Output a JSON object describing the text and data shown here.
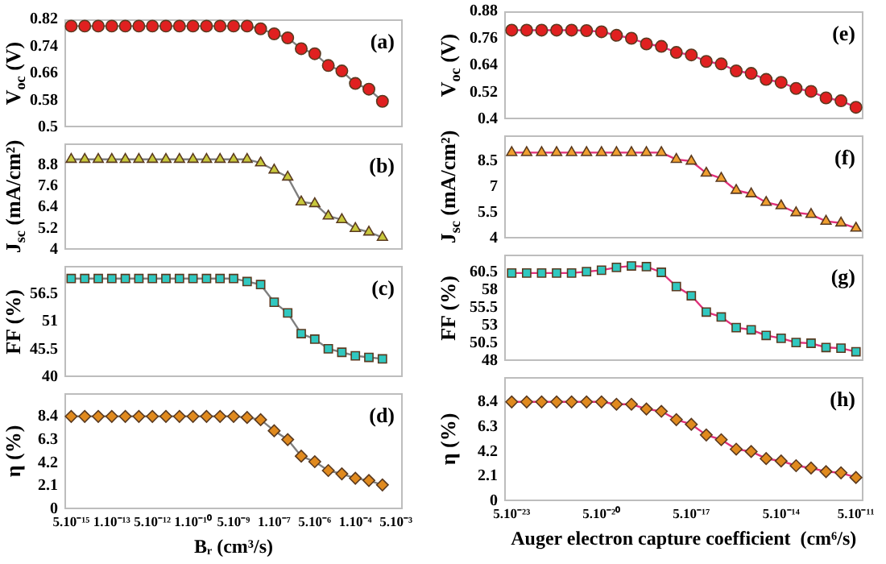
{
  "chart_data": [
    {
      "type": "line",
      "ylabel": "V$_{oc}$ (V)",
      "annotations": [
        "(a)"
      ],
      "marker": "circle",
      "tick_labels": "y",
      "categories": [
        null,
        null,
        null,
        null,
        null,
        null,
        null,
        null,
        null,
        null,
        null,
        null,
        null,
        null,
        null,
        null,
        null,
        null,
        null,
        null,
        null,
        null,
        null,
        null,
        null
      ],
      "ylim": [
        0.5,
        0.82
      ],
      "yticks": [
        0.5,
        0.58,
        0.66,
        0.74,
        0.82
      ],
      "series": [
        {
          "color": "#7f7f7f",
          "colors": [
            "#e02020",
            "#e02020",
            "#e02020",
            "#e02020",
            "#e02020",
            "#e02020",
            "#e02020",
            "#e02020",
            "#e02020",
            "#e02020",
            "#e02020",
            "#e02020",
            "#e02020",
            "#e02020",
            "#e02020",
            "#e02020",
            "#e02020",
            "#e02020",
            "#e02020",
            "#e02020",
            "#e02020",
            "#e02020",
            "#e02020",
            "#e02020",
            "#e02020"
          ],
          "values": [
            0.8,
            0.8,
            0.8,
            0.8,
            0.8,
            0.8,
            0.8,
            0.8,
            0.8,
            0.8,
            0.8,
            0.8,
            0.8,
            0.8,
            0.792,
            0.777,
            0.765,
            0.733,
            0.718,
            0.683,
            0.667,
            0.63,
            0.613,
            0.577,
            null
          ]
        }
      ]
    },
    {
      "type": "line",
      "ylabel": "J$_{sc}$ (mA/cm²)",
      "annotations": [
        "(b)"
      ],
      "marker": "triangle",
      "tick_labels": "y",
      "categories": [
        null,
        null,
        null,
        null,
        null,
        null,
        null,
        null,
        null,
        null,
        null,
        null,
        null,
        null,
        null,
        null,
        null,
        null,
        null,
        null,
        null,
        null,
        null,
        null,
        null
      ],
      "ylim": [
        4,
        10
      ],
      "yticks": [
        4,
        5.2,
        6.4,
        7.6,
        8.8
      ],
      "series": [
        {
          "color": "#7f7f7f",
          "colors": [
            "#c8c83c",
            "#c8c83c",
            "#c8c83c",
            "#c8c83c",
            "#c8c83c",
            "#c8c83c",
            "#c8c83c",
            "#c8c83c",
            "#c8c83c",
            "#c8c83c",
            "#c8c83c",
            "#c8c83c",
            "#c8c83c",
            "#c8c83c",
            "#c8c83c",
            "#c8c83c",
            "#c8c83c",
            "#c8c83c",
            "#c8c83c",
            "#c8c83c",
            "#c8c83c",
            "#c8c83c",
            "#c8c83c",
            "#c8c83c",
            "#c8c83c"
          ],
          "values": [
            9.1,
            9.1,
            9.1,
            9.1,
            9.1,
            9.1,
            9.1,
            9.1,
            9.1,
            9.1,
            9.1,
            9.1,
            9.1,
            9.1,
            8.9,
            8.5,
            8.1,
            6.7,
            6.6,
            5.9,
            5.7,
            5.2,
            5.0,
            4.7,
            null
          ]
        }
      ]
    },
    {
      "type": "line",
      "ylabel": "FF (%)",
      "annotations": [
        "(c)"
      ],
      "marker": "square",
      "tick_labels": "y",
      "categories": [
        null,
        null,
        null,
        null,
        null,
        null,
        null,
        null,
        null,
        null,
        null,
        null,
        null,
        null,
        null,
        null,
        null,
        null,
        null,
        null,
        null,
        null,
        null,
        null,
        null
      ],
      "ylim": [
        40,
        62
      ],
      "yticks": [
        40,
        45.5,
        51,
        56.5
      ],
      "series": [
        {
          "color": "#7f7f7f",
          "colors": [
            "#30c8c0",
            "#30c8c0",
            "#30c8c0",
            "#30c8c0",
            "#30c8c0",
            "#30c8c0",
            "#30c8c0",
            "#30c8c0",
            "#30c8c0",
            "#30c8c0",
            "#30c8c0",
            "#30c8c0",
            "#30c8c0",
            "#30c8c0",
            "#30c8c0",
            "#30c8c0",
            "#30c8c0",
            "#30c8c0",
            "#30c8c0",
            "#30c8c0",
            "#30c8c0",
            "#30c8c0",
            "#30c8c0",
            "#30c8c0",
            "#30c8c0"
          ],
          "values": [
            59.5,
            59.5,
            59.5,
            59.5,
            59.5,
            59.5,
            59.5,
            59.5,
            59.5,
            59.5,
            59.5,
            59.5,
            59.5,
            58.9,
            58.3,
            54.8,
            52.7,
            48.6,
            47.5,
            45.6,
            44.9,
            44.2,
            43.9,
            43.6,
            null
          ]
        }
      ]
    },
    {
      "type": "line",
      "ylabel": "η (%)",
      "xlabel": "Bᵣ (cm³/s)",
      "annotations": [
        "(d)"
      ],
      "marker": "diamond",
      "categories": [
        "5.10⁻¹⁵",
        null,
        null,
        "1.10⁻¹³",
        null,
        null,
        "5.10⁻¹²",
        null,
        null,
        "1.10⁻¹⁰",
        null,
        null,
        "5.10⁻⁹",
        null,
        null,
        "1.10⁻⁷",
        null,
        null,
        "5.10⁻⁶",
        null,
        null,
        "1.10⁻⁴",
        null,
        null,
        "5.10⁻³"
      ],
      "ylim": [
        0,
        10.5
      ],
      "yticks": [
        0,
        2.1,
        4.2,
        6.3,
        8.4
      ],
      "series": [
        {
          "color": "#7f7f7f",
          "colors": [
            "#e08a1e",
            "#e08a1e",
            "#e08a1e",
            "#e08a1e",
            "#e08a1e",
            "#e08a1e",
            "#e08a1e",
            "#e08a1e",
            "#e08a1e",
            "#e08a1e",
            "#e08a1e",
            "#e08a1e",
            "#e08a1e",
            "#e08a1e",
            "#e08a1e",
            "#e08a1e",
            "#e08a1e",
            "#e08a1e",
            "#e08a1e",
            "#e08a1e",
            "#e08a1e",
            "#e08a1e",
            "#e08a1e",
            "#e08a1e",
            "#e08a1e"
          ],
          "values": [
            8.4,
            8.4,
            8.4,
            8.4,
            8.4,
            8.4,
            8.4,
            8.4,
            8.4,
            8.4,
            8.4,
            8.4,
            8.4,
            8.3,
            8.1,
            7.1,
            6.3,
            4.8,
            4.3,
            3.5,
            3.2,
            2.8,
            2.6,
            2.2,
            null
          ]
        }
      ]
    },
    {
      "type": "line",
      "ylabel": "V$_{oc}$ (V)",
      "annotations": [
        "(e)"
      ],
      "marker": "circle",
      "tick_labels": "y",
      "categories": [
        null,
        null,
        null,
        null,
        null,
        null,
        null,
        null,
        null,
        null,
        null,
        null,
        null,
        null,
        null,
        null,
        null,
        null,
        null,
        null,
        null,
        null,
        null,
        null
      ],
      "ylim": [
        0.4,
        0.88
      ],
      "yticks": [
        0.4,
        0.52,
        0.64,
        0.76,
        0.88
      ],
      "series": [
        {
          "color": "#e0307a",
          "colors": [
            "#e02020",
            "#e02020",
            "#e02020",
            "#e02020",
            "#e02020",
            "#e02020",
            "#e02020",
            "#e02020",
            "#e02020",
            "#e02020",
            "#e02020",
            "#e02020",
            "#e02020",
            "#e02020",
            "#e02020",
            "#e02020",
            "#e02020",
            "#e02020",
            "#e02020",
            "#e02020",
            "#e02020",
            "#e02020",
            "#e02020",
            "#e02020"
          ],
          "values": [
            0.796,
            0.796,
            0.796,
            0.796,
            0.796,
            0.794,
            0.789,
            0.773,
            0.76,
            0.735,
            0.724,
            0.697,
            0.686,
            0.657,
            0.646,
            0.615,
            0.604,
            0.577,
            0.564,
            0.537,
            0.524,
            0.495,
            0.482,
            0.453
          ]
        }
      ]
    },
    {
      "type": "line",
      "ylabel": "J$_{sc}$ (mA/cm²)",
      "annotations": [
        "(f)"
      ],
      "marker": "triangle",
      "tick_labels": "y",
      "categories": [
        null,
        null,
        null,
        null,
        null,
        null,
        null,
        null,
        null,
        null,
        null,
        null,
        null,
        null,
        null,
        null,
        null,
        null,
        null,
        null,
        null,
        null,
        null,
        null
      ],
      "ylim": [
        4,
        10
      ],
      "yticks": [
        4,
        5.5,
        7,
        8.5
      ],
      "series": [
        {
          "color": "#e0307a",
          "colors": [
            "#f0a030",
            "#f0a030",
            "#f0a030",
            "#f0a030",
            "#f0a030",
            "#f0a030",
            "#f0a030",
            "#f0a030",
            "#f0a030",
            "#f0a030",
            "#f0a030",
            "#f0a030",
            "#f0a030",
            "#f0a030",
            "#f0a030",
            "#f0a030",
            "#f0a030",
            "#f0a030",
            "#f0a030",
            "#f0a030",
            "#f0a030",
            "#f0a030",
            "#f0a030",
            "#f0a030"
          ],
          "values": [
            9.0,
            9.0,
            9.0,
            9.0,
            9.0,
            9.0,
            9.0,
            9.0,
            9.0,
            9.0,
            9.0,
            8.6,
            8.5,
            7.8,
            7.5,
            6.8,
            6.6,
            6.1,
            5.9,
            5.5,
            5.4,
            5.0,
            4.9,
            4.6
          ]
        }
      ]
    },
    {
      "type": "line",
      "ylabel": "FF (%)",
      "annotations": [
        "(g)"
      ],
      "marker": "square",
      "tick_labels": "y",
      "categories": [
        null,
        null,
        null,
        null,
        null,
        null,
        null,
        null,
        null,
        null,
        null,
        null,
        null,
        null,
        null,
        null,
        null,
        null,
        null,
        null,
        null,
        null,
        null,
        null
      ],
      "ylim": [
        48,
        63
      ],
      "yticks": [
        48,
        50.5,
        53,
        55.5,
        58,
        60.5
      ],
      "series": [
        {
          "color": "#e0307a",
          "colors": [
            "#30c8c0",
            "#30c8c0",
            "#30c8c0",
            "#30c8c0",
            "#30c8c0",
            "#30c8c0",
            "#30c8c0",
            "#30c8c0",
            "#30c8c0",
            "#30c8c0",
            "#30c8c0",
            "#30c8c0",
            "#30c8c0",
            "#30c8c0",
            "#30c8c0",
            "#30c8c0",
            "#30c8c0",
            "#30c8c0",
            "#30c8c0",
            "#30c8c0",
            "#30c8c0",
            "#30c8c0",
            "#30c8c0",
            "#30c8c0"
          ],
          "values": [
            60.4,
            60.4,
            60.4,
            60.4,
            60.4,
            60.6,
            60.8,
            61.2,
            61.4,
            61.3,
            60.5,
            58.5,
            57.2,
            54.9,
            54.2,
            52.7,
            52.4,
            51.6,
            51.2,
            50.6,
            50.5,
            49.9,
            49.8,
            49.3
          ]
        }
      ]
    },
    {
      "type": "line",
      "ylabel": "η (%)",
      "xlabel": "Auger electron capture coefficient  (cm⁶/s)",
      "annotations": [
        "(h)"
      ],
      "marker": "diamond",
      "categories": [
        "5.10⁻²³",
        null,
        null,
        null,
        null,
        null,
        "5.10⁻²⁰",
        null,
        null,
        null,
        null,
        null,
        "5.10⁻¹⁷",
        null,
        null,
        null,
        null,
        null,
        "5.10⁻¹⁴",
        null,
        null,
        null,
        null,
        "5.10⁻¹¹"
      ],
      "ylim": [
        0,
        10.5
      ],
      "yticks": [
        0,
        2.1,
        4.2,
        6.3,
        8.4
      ],
      "series": [
        {
          "color": "#e0307a",
          "colors": [
            "#e08a1e",
            "#e08a1e",
            "#e08a1e",
            "#e08a1e",
            "#e08a1e",
            "#e08a1e",
            "#e08a1e",
            "#e08a1e",
            "#e08a1e",
            "#e08a1e",
            "#e08a1e",
            "#e08a1e",
            "#e08a1e",
            "#e08a1e",
            "#e08a1e",
            "#e08a1e",
            "#e08a1e",
            "#e08a1e",
            "#e08a1e",
            "#e08a1e",
            "#e08a1e",
            "#e08a1e",
            "#e08a1e",
            "#e08a1e"
          ],
          "values": [
            8.4,
            8.4,
            8.4,
            8.4,
            8.4,
            8.4,
            8.4,
            8.2,
            8.2,
            7.8,
            7.6,
            6.9,
            6.5,
            5.6,
            5.2,
            4.4,
            4.2,
            3.6,
            3.4,
            3.0,
            2.8,
            2.5,
            2.4,
            2.0
          ]
        }
      ]
    }
  ]
}
